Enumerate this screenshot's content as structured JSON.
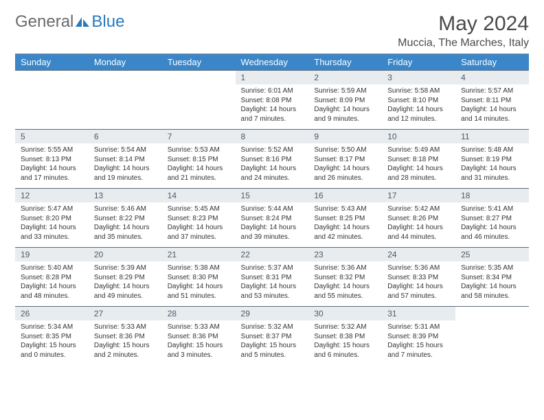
{
  "logo": {
    "gray": "General",
    "blue": "Blue"
  },
  "title": "May 2024",
  "subtitle": "Muccia, The Marches, Italy",
  "colors": {
    "header_bg": "#3a86c8",
    "header_text": "#ffffff",
    "daynum_bg": "#e8ecef",
    "daynum_text": "#4a5a6a",
    "border": "#5a6a7a",
    "logo_gray": "#6a6a6a",
    "logo_blue": "#2a78bd"
  },
  "weekdays": [
    "Sunday",
    "Monday",
    "Tuesday",
    "Wednesday",
    "Thursday",
    "Friday",
    "Saturday"
  ],
  "weeks": [
    [
      null,
      null,
      null,
      {
        "n": "1",
        "sr": "6:01 AM",
        "ss": "8:08 PM",
        "dh": "14",
        "dm": "7"
      },
      {
        "n": "2",
        "sr": "5:59 AM",
        "ss": "8:09 PM",
        "dh": "14",
        "dm": "9"
      },
      {
        "n": "3",
        "sr": "5:58 AM",
        "ss": "8:10 PM",
        "dh": "14",
        "dm": "12"
      },
      {
        "n": "4",
        "sr": "5:57 AM",
        "ss": "8:11 PM",
        "dh": "14",
        "dm": "14"
      }
    ],
    [
      {
        "n": "5",
        "sr": "5:55 AM",
        "ss": "8:13 PM",
        "dh": "14",
        "dm": "17"
      },
      {
        "n": "6",
        "sr": "5:54 AM",
        "ss": "8:14 PM",
        "dh": "14",
        "dm": "19"
      },
      {
        "n": "7",
        "sr": "5:53 AM",
        "ss": "8:15 PM",
        "dh": "14",
        "dm": "21"
      },
      {
        "n": "8",
        "sr": "5:52 AM",
        "ss": "8:16 PM",
        "dh": "14",
        "dm": "24"
      },
      {
        "n": "9",
        "sr": "5:50 AM",
        "ss": "8:17 PM",
        "dh": "14",
        "dm": "26"
      },
      {
        "n": "10",
        "sr": "5:49 AM",
        "ss": "8:18 PM",
        "dh": "14",
        "dm": "28"
      },
      {
        "n": "11",
        "sr": "5:48 AM",
        "ss": "8:19 PM",
        "dh": "14",
        "dm": "31"
      }
    ],
    [
      {
        "n": "12",
        "sr": "5:47 AM",
        "ss": "8:20 PM",
        "dh": "14",
        "dm": "33"
      },
      {
        "n": "13",
        "sr": "5:46 AM",
        "ss": "8:22 PM",
        "dh": "14",
        "dm": "35"
      },
      {
        "n": "14",
        "sr": "5:45 AM",
        "ss": "8:23 PM",
        "dh": "14",
        "dm": "37"
      },
      {
        "n": "15",
        "sr": "5:44 AM",
        "ss": "8:24 PM",
        "dh": "14",
        "dm": "39"
      },
      {
        "n": "16",
        "sr": "5:43 AM",
        "ss": "8:25 PM",
        "dh": "14",
        "dm": "42"
      },
      {
        "n": "17",
        "sr": "5:42 AM",
        "ss": "8:26 PM",
        "dh": "14",
        "dm": "44"
      },
      {
        "n": "18",
        "sr": "5:41 AM",
        "ss": "8:27 PM",
        "dh": "14",
        "dm": "46"
      }
    ],
    [
      {
        "n": "19",
        "sr": "5:40 AM",
        "ss": "8:28 PM",
        "dh": "14",
        "dm": "48"
      },
      {
        "n": "20",
        "sr": "5:39 AM",
        "ss": "8:29 PM",
        "dh": "14",
        "dm": "49"
      },
      {
        "n": "21",
        "sr": "5:38 AM",
        "ss": "8:30 PM",
        "dh": "14",
        "dm": "51"
      },
      {
        "n": "22",
        "sr": "5:37 AM",
        "ss": "8:31 PM",
        "dh": "14",
        "dm": "53"
      },
      {
        "n": "23",
        "sr": "5:36 AM",
        "ss": "8:32 PM",
        "dh": "14",
        "dm": "55"
      },
      {
        "n": "24",
        "sr": "5:36 AM",
        "ss": "8:33 PM",
        "dh": "14",
        "dm": "57"
      },
      {
        "n": "25",
        "sr": "5:35 AM",
        "ss": "8:34 PM",
        "dh": "14",
        "dm": "58"
      }
    ],
    [
      {
        "n": "26",
        "sr": "5:34 AM",
        "ss": "8:35 PM",
        "dh": "15",
        "dm": "0"
      },
      {
        "n": "27",
        "sr": "5:33 AM",
        "ss": "8:36 PM",
        "dh": "15",
        "dm": "2"
      },
      {
        "n": "28",
        "sr": "5:33 AM",
        "ss": "8:36 PM",
        "dh": "15",
        "dm": "3"
      },
      {
        "n": "29",
        "sr": "5:32 AM",
        "ss": "8:37 PM",
        "dh": "15",
        "dm": "5"
      },
      {
        "n": "30",
        "sr": "5:32 AM",
        "ss": "8:38 PM",
        "dh": "15",
        "dm": "6"
      },
      {
        "n": "31",
        "sr": "5:31 AM",
        "ss": "8:39 PM",
        "dh": "15",
        "dm": "7"
      },
      null
    ]
  ]
}
